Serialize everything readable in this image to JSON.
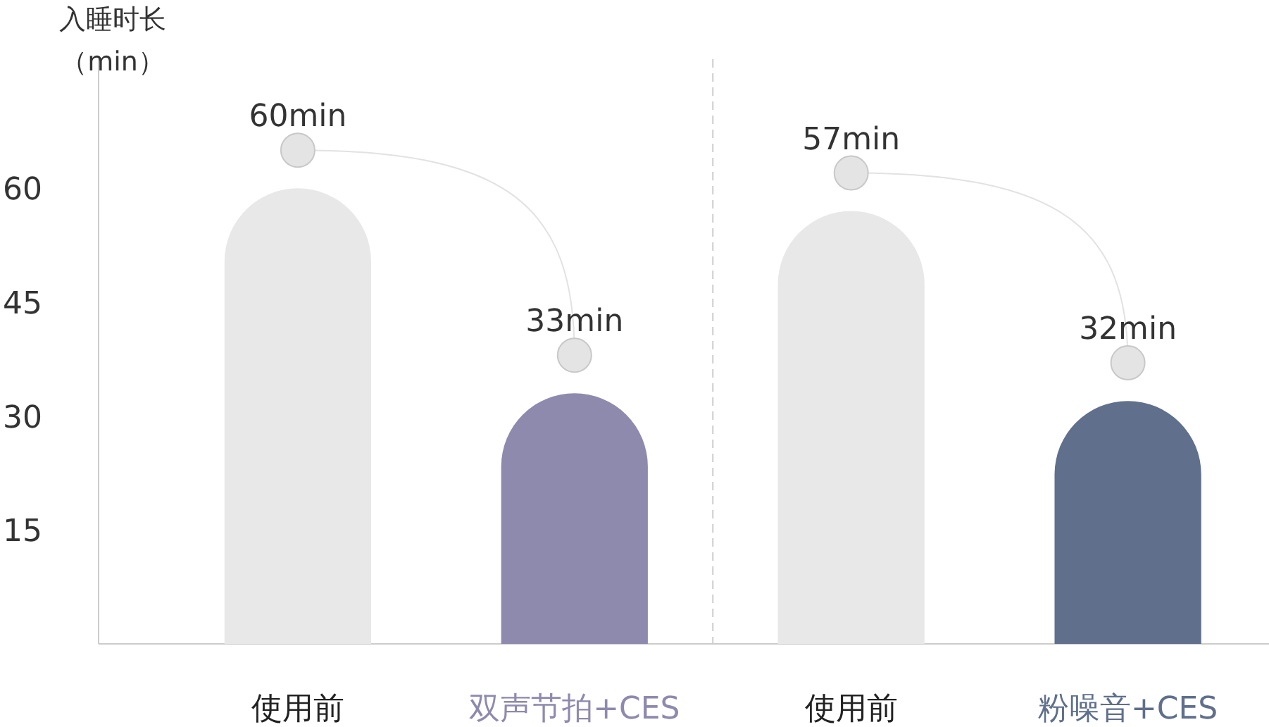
{
  "chart_data": {
    "type": "bar",
    "ylabel": "入睡时长（min）",
    "categories": [
      "使用前",
      "双声节拍+CES",
      "使用前",
      "粉噪音+CES"
    ],
    "values": [
      60,
      33,
      57,
      32
    ],
    "colors": [
      "#e8e8e8",
      "#8e8aae",
      "#e8e8e8",
      "#5f6f8c"
    ],
    "value_labels": [
      "60min",
      "33min",
      "57min",
      "32min"
    ],
    "ylim": [
      0,
      77
    ],
    "yticks": [
      15,
      30,
      45,
      60
    ]
  }
}
